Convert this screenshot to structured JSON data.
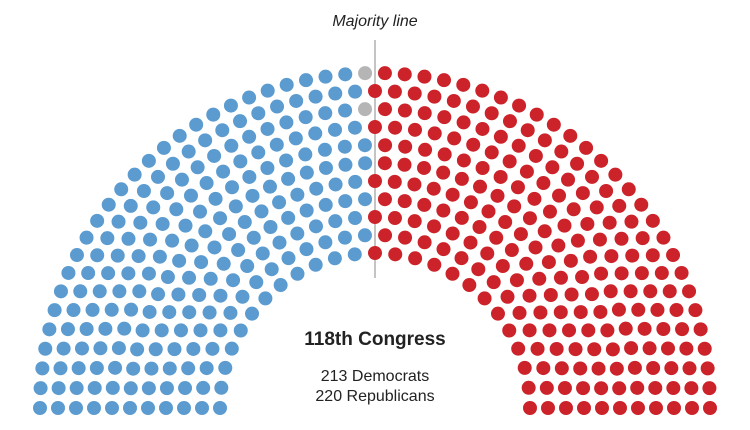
{
  "chart_data": {
    "type": "parliament",
    "title": "118th Congress",
    "annotation": "Majority line",
    "series": [
      {
        "color": "#5b9bcf",
        "values": [
          213
        ],
        "value_labels": [
          "213 Democrats"
        ]
      },
      {
        "color": "#b5b5b5",
        "values": [
          2
        ]
      },
      {
        "color": "#cc2229",
        "values": [
          220
        ],
        "value_labels": [
          "220 Republicans"
        ]
      }
    ]
  }
}
